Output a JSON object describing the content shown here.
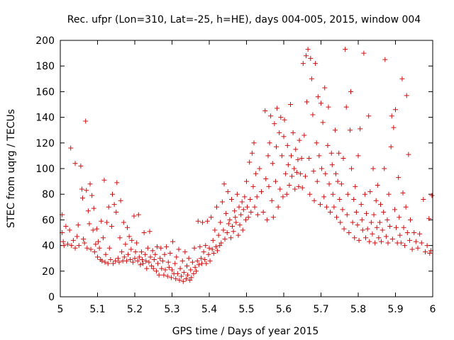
{
  "chart_data": {
    "type": "scatter",
    "title": "Rec. ufpr (Lon=310, Lat=-25, h=HE), days 004-005, 2015, window 004",
    "xlabel": "GPS time / Days of year 2015",
    "ylabel": "STEC from uqrg / TECUs",
    "xlim": [
      5,
      6
    ],
    "ylim": [
      0,
      200
    ],
    "xticks": [
      5,
      5.1,
      5.2,
      5.3,
      5.4,
      5.5,
      5.6,
      5.7,
      5.8,
      5.9,
      6
    ],
    "xtick_labels": [
      "5",
      "5.1",
      "5.2",
      "5.3",
      "5.4",
      "5.5",
      "5.6",
      "5.7",
      "5.8",
      "5.9",
      "6"
    ],
    "yticks": [
      0,
      20,
      40,
      60,
      80,
      100,
      120,
      140,
      160,
      180,
      200
    ],
    "ytick_labels": [
      "0",
      "20",
      "40",
      "60",
      "80",
      "100",
      "120",
      "140",
      "160",
      "180",
      "200"
    ],
    "marker": "+",
    "color": "#d01010",
    "grid": false,
    "legend": "none",
    "points": [
      [
        5.005,
        64
      ],
      [
        5.005,
        50
      ],
      [
        5.008,
        43
      ],
      [
        5.01,
        40
      ],
      [
        5.015,
        55
      ],
      [
        5.02,
        41
      ],
      [
        5.025,
        52
      ],
      [
        5.028,
        116
      ],
      [
        5.03,
        40
      ],
      [
        5.035,
        44
      ],
      [
        5.04,
        104
      ],
      [
        5.04,
        38
      ],
      [
        5.045,
        47
      ],
      [
        5.048,
        56
      ],
      [
        5.05,
        40
      ],
      [
        5.055,
        102
      ],
      [
        5.058,
        84
      ],
      [
        5.06,
        77
      ],
      [
        5.062,
        45
      ],
      [
        5.065,
        42
      ],
      [
        5.068,
        137
      ],
      [
        5.07,
        83
      ],
      [
        5.072,
        38
      ],
      [
        5.075,
        67
      ],
      [
        5.078,
        57
      ],
      [
        5.08,
        88
      ],
      [
        5.082,
        37
      ],
      [
        5.085,
        79
      ],
      [
        5.088,
        52
      ],
      [
        5.09,
        69
      ],
      [
        5.092,
        35
      ],
      [
        5.095,
        41
      ],
      [
        5.098,
        53
      ],
      [
        5.1,
        31
      ],
      [
        5.102,
        43
      ],
      [
        5.105,
        38
      ],
      [
        5.108,
        29
      ],
      [
        5.11,
        59
      ],
      [
        5.112,
        28
      ],
      [
        5.115,
        46
      ],
      [
        5.118,
        91
      ],
      [
        5.12,
        27
      ],
      [
        5.122,
        33
      ],
      [
        5.125,
        58
      ],
      [
        5.128,
        26
      ],
      [
        5.13,
        70
      ],
      [
        5.132,
        38
      ],
      [
        5.135,
        29
      ],
      [
        5.138,
        55
      ],
      [
        5.14,
        80
      ],
      [
        5.142,
        26
      ],
      [
        5.145,
        72
      ],
      [
        5.148,
        28
      ],
      [
        5.15,
        66
      ],
      [
        5.152,
        89
      ],
      [
        5.155,
        30
      ],
      [
        5.158,
        27
      ],
      [
        5.16,
        46
      ],
      [
        5.162,
        75
      ],
      [
        5.165,
        35
      ],
      [
        5.168,
        28
      ],
      [
        5.17,
        58
      ],
      [
        5.172,
        31
      ],
      [
        5.175,
        41
      ],
      [
        5.178,
        28
      ],
      [
        5.18,
        54
      ],
      [
        5.182,
        33
      ],
      [
        5.185,
        47
      ],
      [
        5.188,
        29
      ],
      [
        5.19,
        37
      ],
      [
        5.192,
        44
      ],
      [
        5.195,
        27
      ],
      [
        5.198,
        63
      ],
      [
        5.2,
        30
      ],
      [
        5.202,
        35
      ],
      [
        5.205,
        42
      ],
      [
        5.208,
        28
      ],
      [
        5.21,
        64
      ],
      [
        5.212,
        31
      ],
      [
        5.215,
        25
      ],
      [
        5.218,
        35
      ],
      [
        5.22,
        29
      ],
      [
        5.222,
        26
      ],
      [
        5.225,
        50
      ],
      [
        5.228,
        33
      ],
      [
        5.23,
        28
      ],
      [
        5.232,
        22
      ],
      [
        5.235,
        38
      ],
      [
        5.238,
        27
      ],
      [
        5.24,
        51
      ],
      [
        5.242,
        31
      ],
      [
        5.245,
        24
      ],
      [
        5.248,
        36
      ],
      [
        5.25,
        22
      ],
      [
        5.252,
        29
      ],
      [
        5.255,
        33
      ],
      [
        5.258,
        20
      ],
      [
        5.26,
        39
      ],
      [
        5.262,
        26
      ],
      [
        5.265,
        17
      ],
      [
        5.268,
        30
      ],
      [
        5.27,
        38
      ],
      [
        5.272,
        22
      ],
      [
        5.275,
        28
      ],
      [
        5.278,
        17
      ],
      [
        5.28,
        33
      ],
      [
        5.282,
        21
      ],
      [
        5.285,
        39
      ],
      [
        5.288,
        16
      ],
      [
        5.29,
        27
      ],
      [
        5.292,
        23
      ],
      [
        5.295,
        34
      ],
      [
        5.298,
        15
      ],
      [
        5.3,
        21
      ],
      [
        5.302,
        43
      ],
      [
        5.305,
        18
      ],
      [
        5.308,
        26
      ],
      [
        5.31,
        14
      ],
      [
        5.312,
        31
      ],
      [
        5.315,
        18
      ],
      [
        5.318,
        37
      ],
      [
        5.32,
        13
      ],
      [
        5.322,
        22
      ],
      [
        5.325,
        16
      ],
      [
        5.328,
        28
      ],
      [
        5.33,
        12
      ],
      [
        5.332,
        19
      ],
      [
        5.335,
        35
      ],
      [
        5.338,
        14
      ],
      [
        5.34,
        24
      ],
      [
        5.342,
        17
      ],
      [
        5.345,
        30
      ],
      [
        5.348,
        13
      ],
      [
        5.35,
        21
      ],
      [
        5.352,
        15
      ],
      [
        5.355,
        27
      ],
      [
        5.358,
        18
      ],
      [
        5.36,
        38
      ],
      [
        5.362,
        23
      ],
      [
        5.365,
        20
      ],
      [
        5.368,
        28
      ],
      [
        5.37,
        59
      ],
      [
        5.372,
        25
      ],
      [
        5.375,
        39
      ],
      [
        5.378,
        30
      ],
      [
        5.38,
        26
      ],
      [
        5.382,
        58
      ],
      [
        5.385,
        35
      ],
      [
        5.388,
        29
      ],
      [
        5.39,
        40
      ],
      [
        5.392,
        26
      ],
      [
        5.395,
        59
      ],
      [
        5.398,
        33
      ],
      [
        5.4,
        38
      ],
      [
        5.402,
        28
      ],
      [
        5.405,
        62
      ],
      [
        5.408,
        37
      ],
      [
        5.41,
        44
      ],
      [
        5.412,
        34
      ],
      [
        5.415,
        52
      ],
      [
        5.418,
        39
      ],
      [
        5.42,
        70
      ],
      [
        5.422,
        36
      ],
      [
        5.425,
        48
      ],
      [
        5.428,
        40
      ],
      [
        5.43,
        58
      ],
      [
        5.432,
        42
      ],
      [
        5.435,
        74
      ],
      [
        5.438,
        52
      ],
      [
        5.44,
        88
      ],
      [
        5.442,
        45
      ],
      [
        5.445,
        65
      ],
      [
        5.448,
        50
      ],
      [
        5.45,
        82
      ],
      [
        5.452,
        57
      ],
      [
        5.455,
        60
      ],
      [
        5.458,
        46
      ],
      [
        5.46,
        76
      ],
      [
        5.462,
        55
      ],
      [
        5.465,
        51
      ],
      [
        5.468,
        67
      ],
      [
        5.47,
        62
      ],
      [
        5.472,
        58
      ],
      [
        5.475,
        80
      ],
      [
        5.478,
        48
      ],
      [
        5.48,
        70
      ],
      [
        5.482,
        56
      ],
      [
        5.485,
        64
      ],
      [
        5.488,
        74
      ],
      [
        5.49,
        52
      ],
      [
        5.492,
        68
      ],
      [
        5.495,
        78
      ],
      [
        5.498,
        60
      ],
      [
        5.5,
        90
      ],
      [
        5.502,
        70
      ],
      [
        5.505,
        62
      ],
      [
        5.508,
        105
      ],
      [
        5.51,
        76
      ],
      [
        5.512,
        66
      ],
      [
        5.515,
        112
      ],
      [
        5.518,
        86
      ],
      [
        5.52,
        120
      ],
      [
        5.522,
        70
      ],
      [
        5.525,
        96
      ],
      [
        5.528,
        78
      ],
      [
        5.53,
        64
      ],
      [
        5.535,
        100
      ],
      [
        5.54,
        82
      ],
      [
        5.545,
        66
      ],
      [
        5.55,
        145
      ],
      [
        5.552,
        92
      ],
      [
        5.555,
        60
      ],
      [
        5.558,
        110
      ],
      [
        5.56,
        86
      ],
      [
        5.562,
        120
      ],
      [
        5.565,
        141
      ],
      [
        5.568,
        75
      ],
      [
        5.57,
        104
      ],
      [
        5.572,
        62
      ],
      [
        5.575,
        135
      ],
      [
        5.578,
        90
      ],
      [
        5.58,
        117
      ],
      [
        5.582,
        147
      ],
      [
        5.585,
        70
      ],
      [
        5.588,
        128
      ],
      [
        5.59,
        84
      ],
      [
        5.592,
        140
      ],
      [
        5.595,
        110
      ],
      [
        5.598,
        78
      ],
      [
        5.6,
        125
      ],
      [
        5.602,
        138
      ],
      [
        5.605,
        96
      ],
      [
        5.608,
        80
      ],
      [
        5.61,
        118
      ],
      [
        5.612,
        103
      ],
      [
        5.615,
        87
      ],
      [
        5.618,
        150
      ],
      [
        5.62,
        110
      ],
      [
        5.622,
        94
      ],
      [
        5.625,
        128
      ],
      [
        5.628,
        100
      ],
      [
        5.63,
        84
      ],
      [
        5.632,
        115
      ],
      [
        5.635,
        97
      ],
      [
        5.638,
        107
      ],
      [
        5.64,
        86
      ],
      [
        5.642,
        122
      ],
      [
        5.645,
        96
      ],
      [
        5.648,
        108
      ],
      [
        5.65,
        85
      ],
      [
        5.652,
        182
      ],
      [
        5.655,
        126
      ],
      [
        5.658,
        94
      ],
      [
        5.66,
        188
      ],
      [
        5.662,
        152
      ],
      [
        5.665,
        193
      ],
      [
        5.668,
        108
      ],
      [
        5.67,
        80
      ],
      [
        5.672,
        186
      ],
      [
        5.675,
        170
      ],
      [
        5.678,
        142
      ],
      [
        5.68,
        98
      ],
      [
        5.682,
        75
      ],
      [
        5.685,
        182
      ],
      [
        5.688,
        120
      ],
      [
        5.69,
        90
      ],
      [
        5.692,
        156
      ],
      [
        5.695,
        110
      ],
      [
        5.698,
        72
      ],
      [
        5.7,
        151
      ],
      [
        5.702,
        100
      ],
      [
        5.705,
        136
      ],
      [
        5.708,
        78
      ],
      [
        5.71,
        163
      ],
      [
        5.712,
        96
      ],
      [
        5.715,
        70
      ],
      [
        5.718,
        118
      ],
      [
        5.72,
        148
      ],
      [
        5.722,
        88
      ],
      [
        5.725,
        66
      ],
      [
        5.728,
        112
      ],
      [
        5.73,
        103
      ],
      [
        5.732,
        80
      ],
      [
        5.735,
        70
      ],
      [
        5.738,
        130
      ],
      [
        5.74,
        96
      ],
      [
        5.742,
        62
      ],
      [
        5.745,
        90
      ],
      [
        5.748,
        112
      ],
      [
        5.75,
        76
      ],
      [
        5.752,
        58
      ],
      [
        5.755,
        88
      ],
      [
        5.758,
        68
      ],
      [
        5.76,
        108
      ],
      [
        5.762,
        53
      ],
      [
        5.765,
        193
      ],
      [
        5.768,
        148
      ],
      [
        5.77,
        64
      ],
      [
        5.772,
        80
      ],
      [
        5.775,
        50
      ],
      [
        5.778,
        130
      ],
      [
        5.78,
        160
      ],
      [
        5.782,
        100
      ],
      [
        5.785,
        58
      ],
      [
        5.788,
        76
      ],
      [
        5.79,
        46
      ],
      [
        5.792,
        86
      ],
      [
        5.795,
        66
      ],
      [
        5.798,
        56
      ],
      [
        5.8,
        110
      ],
      [
        5.802,
        44
      ],
      [
        5.805,
        131
      ],
      [
        5.808,
        72
      ],
      [
        5.81,
        60
      ],
      [
        5.812,
        52
      ],
      [
        5.815,
        190
      ],
      [
        5.818,
        80
      ],
      [
        5.82,
        46
      ],
      [
        5.822,
        65
      ],
      [
        5.825,
        53
      ],
      [
        5.828,
        141
      ],
      [
        5.83,
        43
      ],
      [
        5.832,
        82
      ],
      [
        5.835,
        58
      ],
      [
        5.838,
        49
      ],
      [
        5.84,
        100
      ],
      [
        5.842,
        64
      ],
      [
        5.845,
        42
      ],
      [
        5.848,
        75
      ],
      [
        5.85,
        54
      ],
      [
        5.852,
        87
      ],
      [
        5.855,
        46
      ],
      [
        5.858,
        58
      ],
      [
        5.86,
        72
      ],
      [
        5.862,
        43
      ],
      [
        5.865,
        52
      ],
      [
        5.868,
        66
      ],
      [
        5.87,
        100
      ],
      [
        5.872,
        185
      ],
      [
        5.875,
        47
      ],
      [
        5.878,
        60
      ],
      [
        5.88,
        42
      ],
      [
        5.882,
        80
      ],
      [
        5.885,
        55
      ],
      [
        5.888,
        117
      ],
      [
        5.89,
        141
      ],
      [
        5.892,
        45
      ],
      [
        5.895,
        132
      ],
      [
        5.898,
        68
      ],
      [
        5.9,
        146
      ],
      [
        5.902,
        54
      ],
      [
        5.905,
        42
      ],
      [
        5.908,
        93
      ],
      [
        5.91,
        62
      ],
      [
        5.912,
        48
      ],
      [
        5.915,
        42
      ],
      [
        5.918,
        170
      ],
      [
        5.92,
        81
      ],
      [
        5.922,
        54
      ],
      [
        5.925,
        40
      ],
      [
        5.928,
        70
      ],
      [
        5.93,
        157
      ],
      [
        5.932,
        50
      ],
      [
        5.935,
        111
      ],
      [
        5.938,
        44
      ],
      [
        5.94,
        60
      ],
      [
        5.945,
        37
      ],
      [
        5.95,
        50
      ],
      [
        5.955,
        43
      ],
      [
        5.96,
        38
      ],
      [
        5.965,
        49
      ],
      [
        5.97,
        42
      ],
      [
        5.975,
        76
      ],
      [
        5.98,
        35
      ],
      [
        5.985,
        40
      ],
      [
        5.99,
        61
      ],
      [
        5.995,
        36
      ],
      [
        5.998,
        79
      ],
      [
        5.992,
        34
      ]
    ]
  }
}
